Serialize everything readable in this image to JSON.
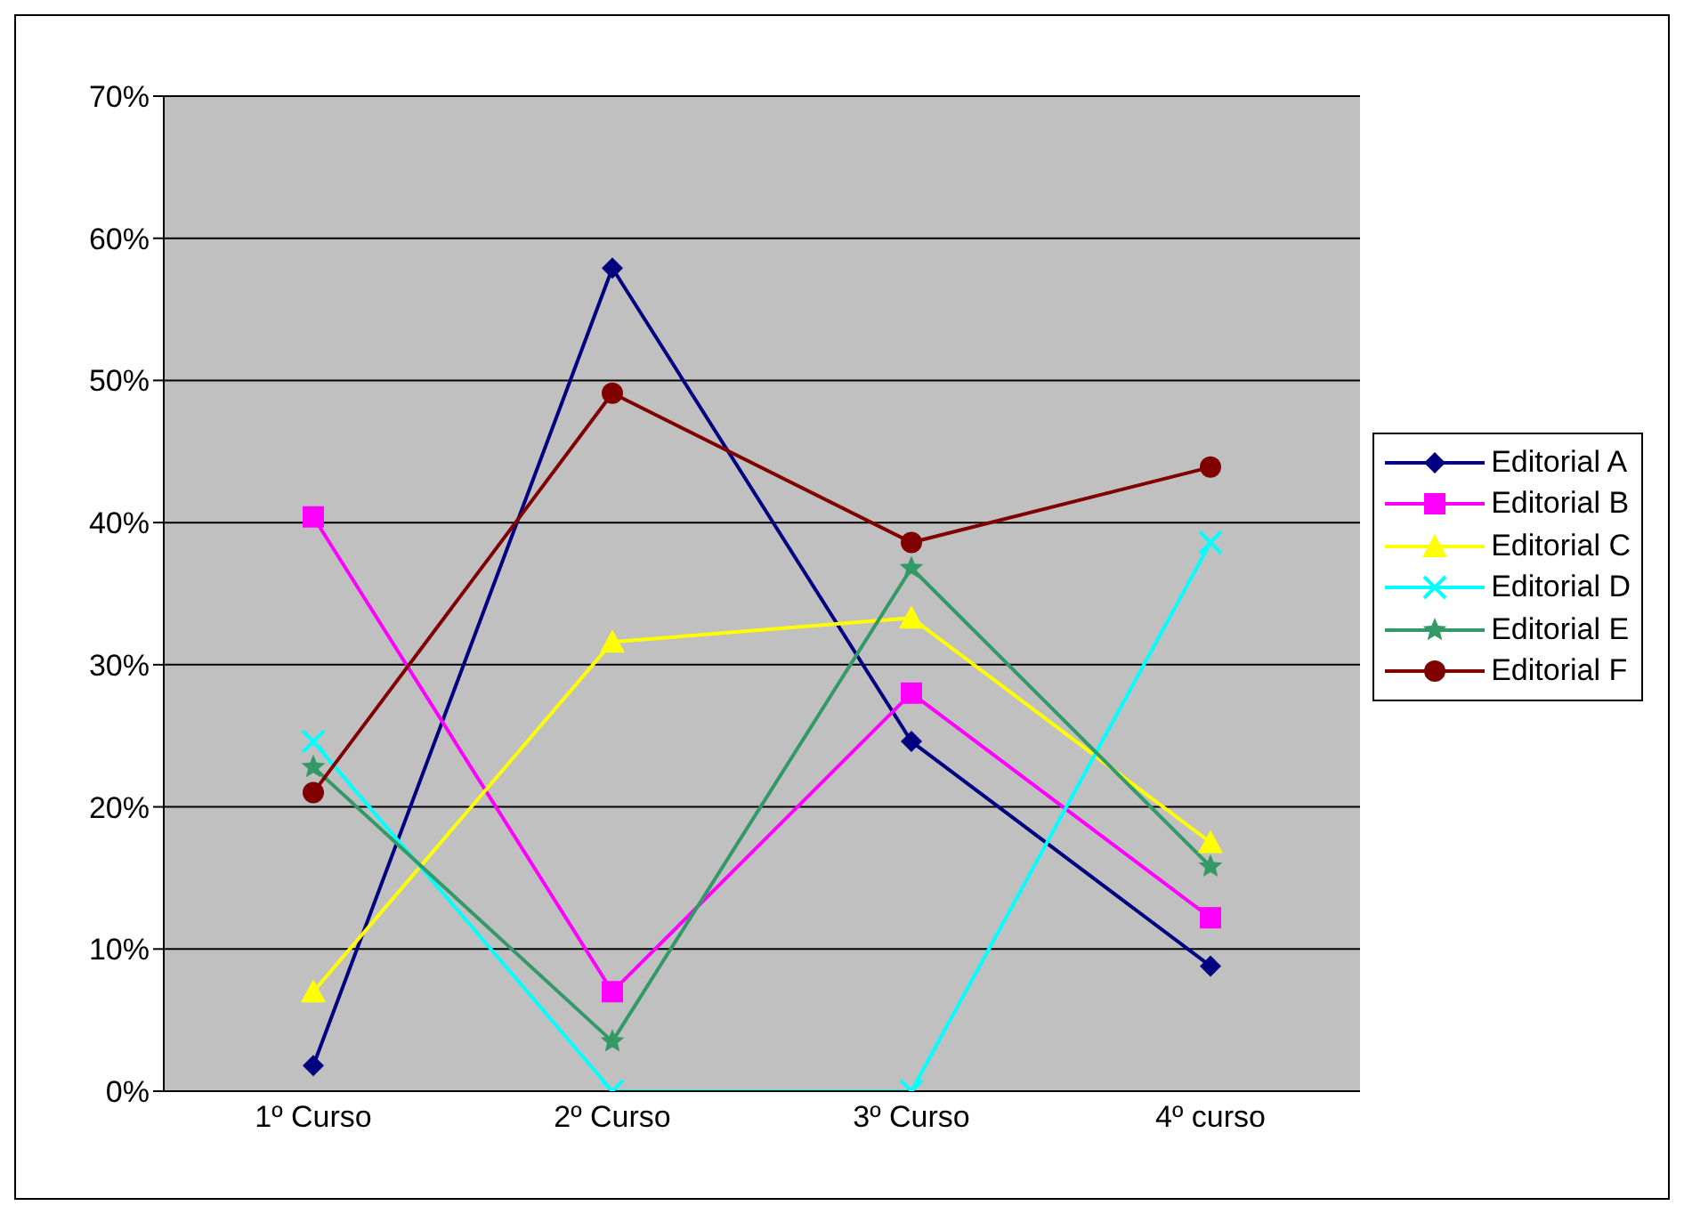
{
  "chart_data": {
    "type": "line",
    "categories": [
      "1º Curso",
      "2º Curso",
      "3º Curso",
      "4º curso"
    ],
    "series": [
      {
        "name": "Editorial A",
        "color": "#000080",
        "marker": "diamond",
        "values": [
          1.8,
          57.9,
          24.6,
          8.8
        ]
      },
      {
        "name": "Editorial B",
        "color": "#ff00ff",
        "marker": "square",
        "values": [
          40.4,
          7,
          28,
          12.2
        ]
      },
      {
        "name": "Editorial C",
        "color": "#ffff00",
        "marker": "triangle",
        "values": [
          7,
          31.6,
          33.3,
          17.5
        ]
      },
      {
        "name": "Editorial D",
        "color": "#00ffff",
        "marker": "cross",
        "values": [
          24.6,
          0,
          0,
          38.6
        ]
      },
      {
        "name": "Editorial E",
        "color": "#339966",
        "marker": "star",
        "values": [
          22.8,
          3.5,
          36.8,
          15.8
        ]
      },
      {
        "name": "Editorial F",
        "color": "#800000",
        "marker": "circle",
        "values": [
          21,
          49.1,
          38.6,
          43.9
        ]
      }
    ],
    "ylim": [
      0,
      70
    ],
    "yticks": [
      {
        "value": 0,
        "label": "0%"
      },
      {
        "value": 10,
        "label": "10%"
      },
      {
        "value": 20,
        "label": "20%"
      },
      {
        "value": 30,
        "label": "30%"
      },
      {
        "value": 40,
        "label": "40%"
      },
      {
        "value": 50,
        "label": "50%"
      },
      {
        "value": 60,
        "label": "60%"
      },
      {
        "value": 70,
        "label": "70%"
      }
    ],
    "grid": "y",
    "legend": "right",
    "line_style": "solid"
  }
}
